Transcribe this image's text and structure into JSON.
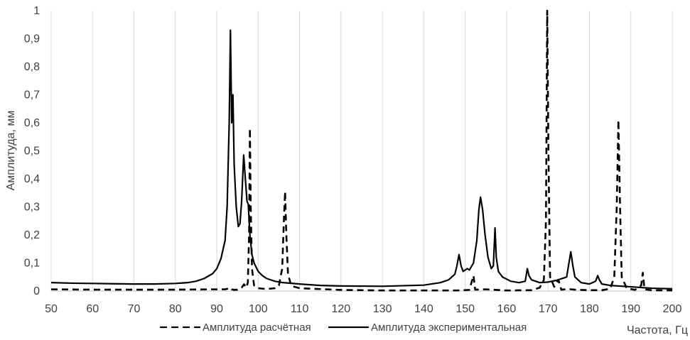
{
  "chart_data": {
    "type": "line",
    "title": "",
    "xlabel": "Частота, Гц",
    "ylabel": "Амплитуда, мм",
    "xlim": [
      50,
      200
    ],
    "ylim": [
      0,
      1
    ],
    "x_ticks": [
      50,
      60,
      70,
      80,
      90,
      100,
      110,
      120,
      130,
      140,
      150,
      160,
      170,
      180,
      190,
      200
    ],
    "y_ticks": [
      0,
      0.1,
      0.2,
      0.3,
      0.4,
      0.5,
      0.6,
      0.7,
      0.8,
      0.9,
      1
    ],
    "x_tick_labels": [
      "50",
      "60",
      "70",
      "80",
      "90",
      "100",
      "110",
      "120",
      "130",
      "140",
      "150",
      "160",
      "170",
      "180",
      "190",
      "200"
    ],
    "y_tick_labels": [
      "0",
      "0,1",
      "0,2",
      "0,3",
      "0,4",
      "0,5",
      "0,6",
      "0,7",
      "0,8",
      "0,9",
      "1"
    ],
    "grid": "vertical",
    "legend_position": "bottom",
    "series": [
      {
        "name": "Амплитуда расчётная",
        "style": "dashed",
        "color": "#000000",
        "points": [
          [
            50,
            0.006
          ],
          [
            60,
            0.005
          ],
          [
            70,
            0.005
          ],
          [
            80,
            0.005
          ],
          [
            90,
            0.006
          ],
          [
            92,
            0.006
          ],
          [
            92.8,
            0.009
          ],
          [
            93.2,
            0.012
          ],
          [
            93.6,
            0.006
          ],
          [
            94.2,
            0.004
          ],
          [
            95,
            0.005
          ],
          [
            96,
            0.012
          ],
          [
            96.6,
            0.024
          ],
          [
            97.1,
            0.012
          ],
          [
            97.5,
            0.03
          ],
          [
            97.8,
            0.2
          ],
          [
            98,
            0.58
          ],
          [
            98.2,
            0.3
          ],
          [
            98.5,
            0.08
          ],
          [
            99,
            0.02
          ],
          [
            100,
            0.01
          ],
          [
            102,
            0.007
          ],
          [
            104,
            0.01
          ],
          [
            105,
            0.02
          ],
          [
            105.8,
            0.08
          ],
          [
            106.2,
            0.25
          ],
          [
            106.5,
            0.355
          ],
          [
            106.8,
            0.2
          ],
          [
            107.2,
            0.06
          ],
          [
            108,
            0.018
          ],
          [
            110,
            0.01
          ],
          [
            115,
            0.007
          ],
          [
            120,
            0.004
          ],
          [
            130,
            0.002
          ],
          [
            140,
            0.002
          ],
          [
            148,
            0.002
          ],
          [
            151,
            0.004
          ],
          [
            152,
            0.055
          ],
          [
            152.4,
            0.005
          ],
          [
            155,
            0.006
          ],
          [
            160,
            0.002
          ],
          [
            166,
            0.003
          ],
          [
            168,
            0.012
          ],
          [
            169,
            0.04
          ],
          [
            169.5,
            0.25
          ],
          [
            169.8,
            1.0
          ],
          [
            170.1,
            0.5
          ],
          [
            170.5,
            0.05
          ],
          [
            171.5,
            0.015
          ],
          [
            172.5,
            0.04
          ],
          [
            173.2,
            0.005
          ],
          [
            175,
            0.007
          ],
          [
            177,
            0.004
          ],
          [
            178,
            0.004
          ],
          [
            180,
            0.003
          ],
          [
            183,
            0.003
          ],
          [
            185,
            0.008
          ],
          [
            186,
            0.05
          ],
          [
            186.6,
            0.3
          ],
          [
            187,
            0.61
          ],
          [
            187.4,
            0.3
          ],
          [
            187.8,
            0.05
          ],
          [
            189,
            0.01
          ],
          [
            191,
            0.004
          ],
          [
            192.5,
            0.02
          ],
          [
            192.9,
            0.065
          ],
          [
            193.3,
            0.006
          ],
          [
            195,
            0.003
          ],
          [
            200,
            0.002
          ]
        ]
      },
      {
        "name": "Амплитуда экспериментальная",
        "style": "solid",
        "color": "#000000",
        "points": [
          [
            50,
            0.03
          ],
          [
            55,
            0.028
          ],
          [
            60,
            0.027
          ],
          [
            65,
            0.026
          ],
          [
            70,
            0.025
          ],
          [
            75,
            0.025
          ],
          [
            80,
            0.027
          ],
          [
            83,
            0.03
          ],
          [
            85,
            0.035
          ],
          [
            87,
            0.045
          ],
          [
            89,
            0.062
          ],
          [
            90,
            0.08
          ],
          [
            91,
            0.115
          ],
          [
            92,
            0.18
          ],
          [
            92.5,
            0.3
          ],
          [
            93,
            0.6
          ],
          [
            93.3,
            0.93
          ],
          [
            93.6,
            0.6
          ],
          [
            93.9,
            0.7
          ],
          [
            94.2,
            0.45
          ],
          [
            94.7,
            0.3
          ],
          [
            95.2,
            0.23
          ],
          [
            95.6,
            0.24
          ],
          [
            96,
            0.32
          ],
          [
            96.5,
            0.485
          ],
          [
            96.9,
            0.4
          ],
          [
            97.3,
            0.32
          ],
          [
            97.6,
            0.31
          ],
          [
            98,
            0.2
          ],
          [
            98.5,
            0.13
          ],
          [
            99,
            0.1
          ],
          [
            100,
            0.07
          ],
          [
            101,
            0.055
          ],
          [
            102,
            0.045
          ],
          [
            104,
            0.035
          ],
          [
            106,
            0.03
          ],
          [
            110,
            0.025
          ],
          [
            115,
            0.02
          ],
          [
            120,
            0.018
          ],
          [
            130,
            0.017
          ],
          [
            140,
            0.021
          ],
          [
            144,
            0.03
          ],
          [
            146,
            0.04
          ],
          [
            147.5,
            0.06
          ],
          [
            148,
            0.09
          ],
          [
            148.5,
            0.13
          ],
          [
            149,
            0.09
          ],
          [
            149.5,
            0.07
          ],
          [
            150,
            0.075
          ],
          [
            150.5,
            0.08
          ],
          [
            151,
            0.075
          ],
          [
            152,
            0.1
          ],
          [
            152.8,
            0.18
          ],
          [
            153.3,
            0.29
          ],
          [
            153.7,
            0.335
          ],
          [
            154.2,
            0.29
          ],
          [
            154.8,
            0.2
          ],
          [
            155.5,
            0.12
          ],
          [
            156.3,
            0.08
          ],
          [
            156.8,
            0.09
          ],
          [
            157.2,
            0.225
          ],
          [
            157.5,
            0.12
          ],
          [
            158,
            0.07
          ],
          [
            159,
            0.05
          ],
          [
            161,
            0.035
          ],
          [
            163,
            0.03
          ],
          [
            164.5,
            0.035
          ],
          [
            165,
            0.08
          ],
          [
            165.4,
            0.055
          ],
          [
            166,
            0.04
          ],
          [
            168,
            0.03
          ],
          [
            170,
            0.032
          ],
          [
            172,
            0.038
          ],
          [
            173.5,
            0.045
          ],
          [
            174.5,
            0.05
          ],
          [
            175.5,
            0.14
          ],
          [
            176,
            0.09
          ],
          [
            176.5,
            0.05
          ],
          [
            178,
            0.03
          ],
          [
            180,
            0.025
          ],
          [
            181.5,
            0.035
          ],
          [
            182,
            0.055
          ],
          [
            182.4,
            0.04
          ],
          [
            183,
            0.025
          ],
          [
            185,
            0.02
          ],
          [
            190,
            0.015
          ],
          [
            195,
            0.01
          ],
          [
            200,
            0.008
          ]
        ]
      }
    ]
  }
}
